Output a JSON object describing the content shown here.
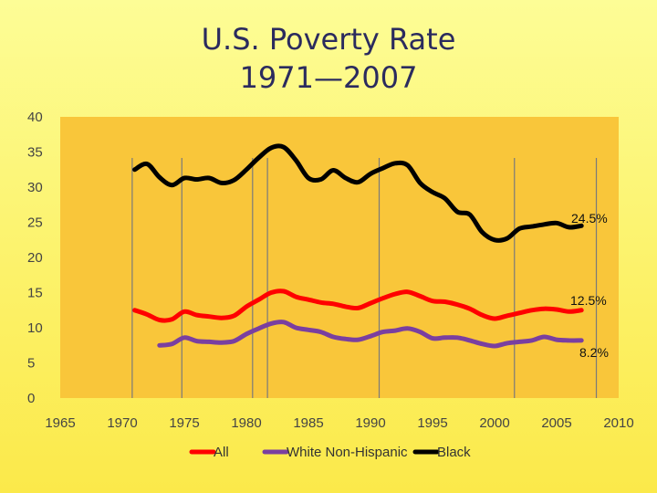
{
  "title": {
    "line1": "U.S. Poverty Rate",
    "line2": "1971—2007"
  },
  "colors": {
    "plot_bg": "#f9c63a",
    "gridline": "#7a7a7a",
    "All": "#ff0000",
    "White Non-Hispanic": "#7a3fa0",
    "Black": "#000000"
  },
  "chart_data": {
    "type": "line",
    "title": "U.S. Poverty Rate 1971—2007",
    "xlabel": "",
    "ylabel": "",
    "xlim": [
      1965,
      2010
    ],
    "ylim": [
      0,
      40
    ],
    "xticks": [
      "1965",
      "1970",
      "1975",
      "1980",
      "1985",
      "1990",
      "1995",
      "2000",
      "2005",
      "2010"
    ],
    "yticks": [
      "0",
      "5",
      "10",
      "15",
      "20",
      "25",
      "30",
      "35",
      "40"
    ],
    "grid": "vertical lines at recession periods",
    "vlines": [
      1970.8,
      1974.8,
      1980.5,
      1981.7,
      1990.7,
      2001.6,
      2008.2
    ],
    "legend_position": "bottom",
    "series": [
      {
        "name": "All",
        "x": [
          1971,
          1972,
          1973,
          1974,
          1975,
          1976,
          1977,
          1978,
          1979,
          1980,
          1981,
          1982,
          1983,
          1984,
          1985,
          1986,
          1987,
          1988,
          1989,
          1990,
          1991,
          1992,
          1993,
          1994,
          1995,
          1996,
          1997,
          1998,
          1999,
          2000,
          2001,
          2002,
          2003,
          2004,
          2005,
          2006,
          2007
        ],
        "y": [
          12.5,
          11.9,
          11.1,
          11.2,
          12.3,
          11.8,
          11.6,
          11.4,
          11.7,
          13.0,
          14.0,
          15.0,
          15.2,
          14.4,
          14.0,
          13.6,
          13.4,
          13.0,
          12.8,
          13.5,
          14.2,
          14.8,
          15.1,
          14.5,
          13.8,
          13.7,
          13.3,
          12.7,
          11.8,
          11.3,
          11.7,
          12.1,
          12.5,
          12.7,
          12.6,
          12.3,
          12.5
        ]
      },
      {
        "name": "White Non-Hispanic",
        "x": [
          1973,
          1974,
          1975,
          1976,
          1977,
          1978,
          1979,
          1980,
          1981,
          1982,
          1983,
          1984,
          1985,
          1986,
          1987,
          1988,
          1989,
          1990,
          1991,
          1992,
          1993,
          1994,
          1995,
          1996,
          1997,
          1998,
          1999,
          2000,
          2001,
          2002,
          2003,
          2004,
          2005,
          2006,
          2007
        ],
        "y": [
          7.5,
          7.7,
          8.6,
          8.1,
          8.0,
          7.9,
          8.1,
          9.1,
          9.9,
          10.6,
          10.8,
          10.0,
          9.7,
          9.4,
          8.7,
          8.4,
          8.3,
          8.8,
          9.4,
          9.6,
          9.9,
          9.4,
          8.5,
          8.6,
          8.6,
          8.2,
          7.7,
          7.4,
          7.8,
          8.0,
          8.2,
          8.7,
          8.3,
          8.2,
          8.2
        ]
      },
      {
        "name": "Black",
        "x": [
          1971,
          1972,
          1973,
          1974,
          1975,
          1976,
          1977,
          1978,
          1979,
          1980,
          1981,
          1982,
          1983,
          1984,
          1985,
          1986,
          1987,
          1988,
          1989,
          1990,
          1991,
          1992,
          1993,
          1994,
          1995,
          1996,
          1997,
          1998,
          1999,
          2000,
          2001,
          2002,
          2003,
          2004,
          2005,
          2006,
          2007
        ],
        "y": [
          32.5,
          33.3,
          31.4,
          30.3,
          31.3,
          31.1,
          31.3,
          30.6,
          31.0,
          32.5,
          34.2,
          35.6,
          35.7,
          33.8,
          31.3,
          31.1,
          32.4,
          31.3,
          30.7,
          31.9,
          32.7,
          33.4,
          33.1,
          30.6,
          29.3,
          28.4,
          26.5,
          26.1,
          23.6,
          22.5,
          22.7,
          24.1,
          24.4,
          24.7,
          24.9,
          24.3,
          24.5
        ]
      }
    ],
    "annotations": [
      {
        "text": "24.5%",
        "series": "Black",
        "year": 2007,
        "value": 24.5
      },
      {
        "text": "12.5%",
        "series": "All",
        "year": 2007,
        "value": 12.5
      },
      {
        "text": "8.2%",
        "series": "White Non-Hispanic",
        "year": 2007,
        "value": 8.2
      }
    ]
  }
}
